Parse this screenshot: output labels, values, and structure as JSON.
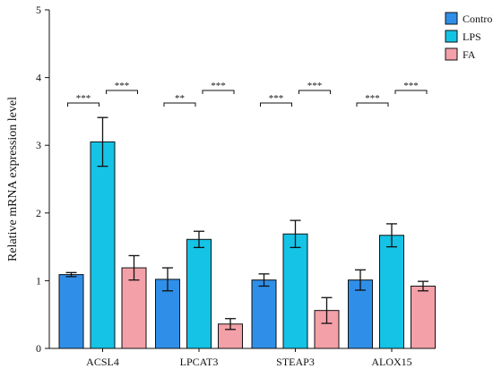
{
  "chart_data": {
    "type": "bar",
    "title": "",
    "xlabel": "",
    "ylabel": "Relative mRNA expression level",
    "ylim": [
      0,
      5
    ],
    "yticks": [
      0,
      1,
      2,
      3,
      4,
      5
    ],
    "grid": false,
    "legend_position": "top-right",
    "categories": [
      "ACSL4",
      "LPCAT3",
      "STEAP3",
      "ALOX15"
    ],
    "series": [
      {
        "name": "Control",
        "color": "#2f8fe8",
        "values": [
          1.09,
          1.02,
          1.01,
          1.01
        ],
        "errors": [
          0.03,
          0.17,
          0.09,
          0.15
        ]
      },
      {
        "name": "LPS",
        "color": "#14c3e6",
        "values": [
          3.05,
          1.61,
          1.69,
          1.67
        ],
        "errors": [
          0.36,
          0.12,
          0.2,
          0.17
        ]
      },
      {
        "name": "FA",
        "color": "#f4a0a8",
        "values": [
          1.19,
          0.36,
          0.56,
          0.92
        ],
        "errors": [
          0.18,
          0.08,
          0.19,
          0.07
        ]
      }
    ],
    "significance": [
      [
        {
          "label": "***"
        },
        {
          "label": "***"
        }
      ],
      [
        {
          "label": "**"
        },
        {
          "label": "***"
        }
      ],
      [
        {
          "label": "***"
        },
        {
          "label": "***"
        }
      ],
      [
        {
          "label": "***"
        },
        {
          "label": "***"
        }
      ]
    ]
  }
}
